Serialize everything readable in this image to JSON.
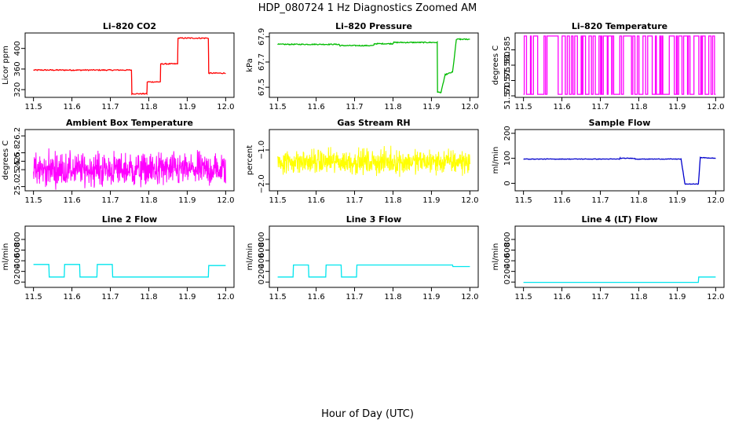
{
  "figure": {
    "title": "HDP_080724  1 Hz Diagnostics Zoomed AM",
    "xlabel": "Hour of Day (UTC)"
  },
  "chart_data": [
    {
      "type": "line",
      "title": "Li–820 CO2",
      "ylabel": "Licor ppm",
      "color": "#ff0000",
      "xlim": [
        11.5,
        12.0
      ],
      "ylim": [
        305,
        430
      ],
      "x_ticks": [
        "11.5",
        "11.6",
        "11.7",
        "11.8",
        "11.9",
        "12.0"
      ],
      "y_ticks": [
        {
          "v": 320,
          "label": "320"
        },
        {
          "v": 360,
          "label": "360"
        },
        {
          "v": 400,
          "label": "400"
        }
      ],
      "series": [
        {
          "x": [
            11.5,
            11.755,
            11.756,
            11.795,
            11.796,
            11.83,
            11.831,
            11.875,
            11.876,
            11.955,
            11.956,
            12.0
          ],
          "y": [
            358,
            358,
            312,
            312,
            335,
            335,
            370,
            370,
            420,
            420,
            352,
            352
          ],
          "noise": 1.0
        }
      ]
    },
    {
      "type": "line",
      "title": "Li–820 Pressure",
      "ylabel": "kPa",
      "color": "#00bb00",
      "xlim": [
        11.5,
        12.0
      ],
      "ylim": [
        67.42,
        67.93
      ],
      "x_ticks": [
        "11.5",
        "11.6",
        "11.7",
        "11.8",
        "11.9",
        "12.0"
      ],
      "y_ticks": [
        {
          "v": 67.5,
          "label": "67.5"
        },
        {
          "v": 67.7,
          "label": "67.7"
        },
        {
          "v": 67.9,
          "label": "67.9"
        }
      ],
      "series": [
        {
          "x": [
            11.5,
            11.66,
            11.661,
            11.75,
            11.751,
            11.8,
            11.801,
            11.915,
            11.916,
            11.925,
            11.935,
            11.936,
            11.955,
            11.965,
            11.975,
            12.0
          ],
          "y": [
            67.84,
            67.84,
            67.83,
            67.83,
            67.845,
            67.845,
            67.855,
            67.855,
            67.46,
            67.46,
            67.59,
            67.6,
            67.62,
            67.88,
            67.88,
            67.88
          ],
          "noise": 0.004
        }
      ]
    },
    {
      "type": "line",
      "title": "Li–820 Temperature",
      "ylabel": "degrees C",
      "color": "#ff00ff",
      "xlim": [
        11.5,
        12.0
      ],
      "ylim": [
        51.5695,
        51.5905
      ],
      "x_ticks": [
        "11.5",
        "11.6",
        "11.7",
        "11.8",
        "11.9",
        "12.0"
      ],
      "y_ticks": [
        {
          "v": 51.57,
          "label": "51.570"
        },
        {
          "v": 51.575,
          "label": "51.575"
        },
        {
          "v": 51.58,
          "label": "51.580"
        },
        {
          "v": 51.585,
          "label": "51.585"
        }
      ],
      "series": [
        {
          "x": [
            11.5,
            12.0
          ],
          "y": [
            51.5705,
            51.5895
          ],
          "noise": 0,
          "mode": "toggle"
        }
      ]
    },
    {
      "type": "line",
      "title": "Ambient Box Temperature",
      "ylabel": "degrees C",
      "color": "#ff00ff",
      "xlim": [
        11.5,
        12.0
      ],
      "ylim": [
        24.9,
        26.35
      ],
      "x_ticks": [
        "11.5",
        "11.6",
        "11.7",
        "11.8",
        "11.9",
        "12.0"
      ],
      "y_ticks": [
        {
          "v": 25.0,
          "label": "25.0"
        },
        {
          "v": 25.4,
          "label": "25.4"
        },
        {
          "v": 25.6,
          "label": "25.6"
        },
        {
          "v": 25.8,
          "label": "25.8"
        },
        {
          "v": 26.2,
          "label": "26.2"
        }
      ],
      "series": [
        {
          "x": [
            11.5,
            12.0
          ],
          "y": [
            25.4,
            25.4
          ],
          "noise": 0.35,
          "mode": "noise"
        }
      ]
    },
    {
      "type": "line",
      "title": "Gas Stream RH",
      "ylabel": "percent",
      "color": "#ffff00",
      "xlim": [
        11.5,
        12.0
      ],
      "ylim": [
        -2.2,
        -0.4
      ],
      "x_ticks": [
        "11.5",
        "11.6",
        "11.7",
        "11.8",
        "11.9",
        "12.0"
      ],
      "y_ticks": [
        {
          "v": -2.0,
          "label": "−2.0"
        },
        {
          "v": -1.0,
          "label": "−1.0"
        }
      ],
      "series": [
        {
          "x": [
            11.5,
            12.0
          ],
          "y": [
            -1.35,
            -1.35
          ],
          "noise": 0.32,
          "mode": "noise"
        }
      ]
    },
    {
      "type": "line",
      "title": "Sample Flow",
      "ylabel": "ml/min",
      "color": "#0000cc",
      "xlim": [
        11.5,
        12.0
      ],
      "ylim": [
        -30,
        215
      ],
      "x_ticks": [
        "11.5",
        "11.6",
        "11.7",
        "11.8",
        "11.9",
        "12.0"
      ],
      "y_ticks": [
        {
          "v": 0,
          "label": "0"
        },
        {
          "v": 100,
          "label": "100"
        },
        {
          "v": 200,
          "label": "200"
        }
      ],
      "series": [
        {
          "x": [
            11.5,
            11.75,
            11.751,
            11.79,
            11.791,
            11.91,
            11.92,
            11.955,
            11.96,
            12.0
          ],
          "y": [
            97,
            97,
            100,
            100,
            97,
            97,
            -3,
            -3,
            103,
            100
          ],
          "noise": 1.0
        }
      ]
    },
    {
      "type": "line",
      "title": "Line 2 Flow",
      "ylabel": "ml/min",
      "color": "#00e5ee",
      "xlim": [
        11.5,
        12.0
      ],
      "ylim": [
        -100,
        1050
      ],
      "x_ticks": [
        "11.5",
        "11.6",
        "11.7",
        "11.8",
        "11.9",
        "12.0"
      ],
      "y_ticks": [
        {
          "v": 0,
          "label": "0"
        },
        {
          "v": 200,
          "label": "200"
        },
        {
          "v": 400,
          "label": "400"
        },
        {
          "v": 600,
          "label": "600"
        },
        {
          "v": 800,
          "label": "800"
        }
      ],
      "series": [
        {
          "x": [
            11.5,
            11.54,
            11.541,
            11.58,
            11.581,
            11.62,
            11.621,
            11.665,
            11.666,
            11.705,
            11.706,
            11.955,
            11.956,
            12.0
          ],
          "y": [
            330,
            330,
            95,
            95,
            330,
            330,
            95,
            95,
            330,
            330,
            95,
            95,
            310,
            310
          ],
          "noise": 0
        }
      ]
    },
    {
      "type": "line",
      "title": "Line 3 Flow",
      "ylabel": "ml/min",
      "color": "#00e5ee",
      "xlim": [
        11.5,
        12.0
      ],
      "ylim": [
        -100,
        1050
      ],
      "x_ticks": [
        "11.5",
        "11.6",
        "11.7",
        "11.8",
        "11.9",
        "12.0"
      ],
      "y_ticks": [
        {
          "v": 0,
          "label": "0"
        },
        {
          "v": 200,
          "label": "200"
        },
        {
          "v": 400,
          "label": "400"
        },
        {
          "v": 600,
          "label": "600"
        },
        {
          "v": 800,
          "label": "800"
        }
      ],
      "series": [
        {
          "x": [
            11.5,
            11.54,
            11.541,
            11.58,
            11.581,
            11.625,
            11.626,
            11.665,
            11.666,
            11.705,
            11.706,
            11.955,
            11.956,
            12.0
          ],
          "y": [
            95,
            95,
            320,
            320,
            95,
            95,
            320,
            320,
            95,
            95,
            320,
            320,
            290,
            290
          ],
          "noise": 0
        }
      ]
    },
    {
      "type": "line",
      "title": "Line 4 (LT) Flow",
      "ylabel": "ml/min",
      "color": "#00e5ee",
      "xlim": [
        11.5,
        12.0
      ],
      "ylim": [
        -100,
        1050
      ],
      "x_ticks": [
        "11.5",
        "11.6",
        "11.7",
        "11.8",
        "11.9",
        "12.0"
      ],
      "y_ticks": [
        {
          "v": 0,
          "label": "0"
        },
        {
          "v": 200,
          "label": "200"
        },
        {
          "v": 400,
          "label": "400"
        },
        {
          "v": 600,
          "label": "600"
        },
        {
          "v": 800,
          "label": "800"
        }
      ],
      "series": [
        {
          "x": [
            11.5,
            11.955,
            11.956,
            12.0
          ],
          "y": [
            -5,
            -5,
            95,
            95
          ],
          "noise": 0
        }
      ]
    }
  ]
}
